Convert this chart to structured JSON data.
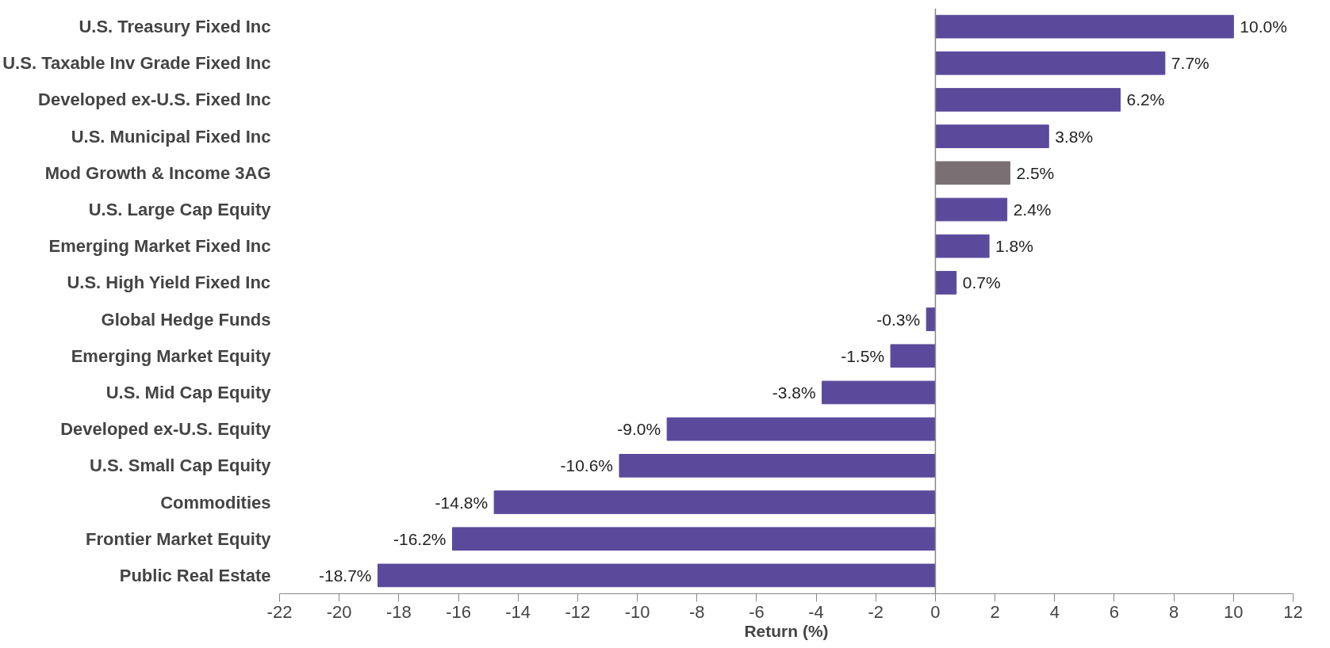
{
  "chart_data": {
    "type": "bar",
    "orientation": "horizontal",
    "xlabel": "Return (%)",
    "categories": [
      "U.S. Treasury Fixed Inc",
      "U.S. Taxable Inv Grade Fixed Inc",
      "Developed ex-U.S. Fixed Inc",
      "U.S. Municipal Fixed Inc",
      "Mod Growth & Income 3AG",
      "U.S. Large Cap Equity",
      "Emerging Market Fixed Inc",
      "U.S. High Yield Fixed Inc",
      "Global Hedge Funds",
      "Emerging Market Equity",
      "U.S. Mid Cap Equity",
      "Developed ex-U.S. Equity",
      "U.S. Small Cap Equity",
      "Commodities",
      "Frontier Market Equity",
      "Public Real Estate"
    ],
    "values": [
      10.0,
      7.7,
      6.2,
      3.8,
      2.5,
      2.4,
      1.8,
      0.7,
      -0.3,
      -1.5,
      -3.8,
      -9.0,
      -10.6,
      -14.8,
      -16.2,
      -18.7
    ],
    "value_labels": [
      "10.0%",
      "7.7%",
      "6.2%",
      "3.8%",
      "2.5%",
      "2.4%",
      "1.8%",
      "0.7%",
      "-0.3%",
      "-1.5%",
      "-3.8%",
      "-9.0%",
      "-10.6%",
      "-14.8%",
      "-16.2%",
      "-18.7%"
    ],
    "colors": [
      "#5b4a9b",
      "#5b4a9b",
      "#5b4a9b",
      "#5b4a9b",
      "#7a6f72",
      "#5b4a9b",
      "#5b4a9b",
      "#5b4a9b",
      "#5b4a9b",
      "#5b4a9b",
      "#5b4a9b",
      "#5b4a9b",
      "#5b4a9b",
      "#5b4a9b",
      "#5b4a9b",
      "#5b4a9b"
    ],
    "xlim": [
      -22,
      12
    ],
    "xticks": [
      -22,
      -20,
      -18,
      -16,
      -14,
      -12,
      -10,
      -8,
      -6,
      -4,
      -2,
      0,
      2,
      4,
      6,
      8,
      10,
      12
    ]
  }
}
